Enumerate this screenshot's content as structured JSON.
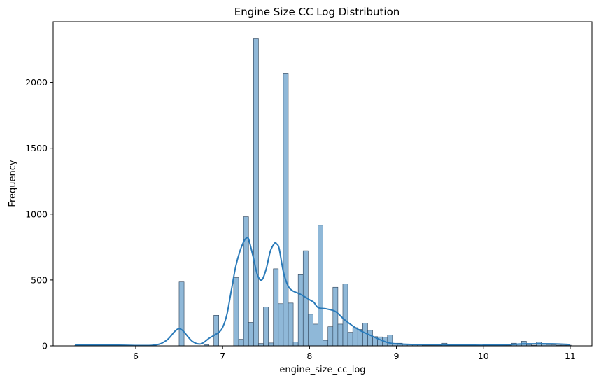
{
  "chart_data": {
    "type": "bar",
    "subtype": "histogram_with_kde",
    "title": "Engine Size CC Log Distribution",
    "xlabel": "engine_size_cc_log",
    "ylabel": "Frequency",
    "xlim": [
      5.05,
      11.25
    ],
    "ylim": [
      0,
      2460
    ],
    "xticks": [
      6,
      7,
      8,
      9,
      10,
      11
    ],
    "yticks": [
      0,
      500,
      1000,
      1500,
      2000,
      2500
    ],
    "grid": false,
    "legend": false,
    "colors": {
      "bar_fill": "#8fb8d8",
      "bar_edge": "#2b3f55",
      "kde_line": "#2a7ab9"
    },
    "histogram": {
      "bin_start": 5.3,
      "bin_width": 0.0571,
      "counts": [
        4,
        0,
        0,
        0,
        0,
        0,
        0,
        0,
        0,
        0,
        0,
        0,
        0,
        0,
        0,
        0,
        0,
        0,
        0,
        0,
        0,
        485,
        0,
        0,
        0,
        0,
        10,
        0,
        232,
        0,
        0,
        0,
        518,
        50,
        980,
        178,
        2335,
        18,
        294,
        22,
        585,
        320,
        2070,
        325,
        30,
        540,
        722,
        240,
        165,
        915,
        42,
        145,
        445,
        165,
        470,
        103,
        138,
        125,
        172,
        118,
        70,
        68,
        65,
        82,
        20,
        20,
        10,
        10,
        10,
        10,
        5,
        5,
        5,
        5,
        20,
        5,
        5,
        5,
        5,
        5,
        5,
        5,
        5,
        5,
        5,
        5,
        5,
        5,
        20,
        12,
        35,
        10,
        5,
        30,
        15,
        10,
        8,
        5,
        5,
        5
      ]
    },
    "kde": {
      "x": [
        5.3,
        5.8,
        6.2,
        6.35,
        6.45,
        6.5,
        6.55,
        6.65,
        6.75,
        6.85,
        6.95,
        7.0,
        7.05,
        7.1,
        7.15,
        7.2,
        7.25,
        7.28,
        7.3,
        7.35,
        7.4,
        7.45,
        7.5,
        7.55,
        7.6,
        7.62,
        7.65,
        7.7,
        7.75,
        7.8,
        7.9,
        8.0,
        8.05,
        8.1,
        8.2,
        8.3,
        8.4,
        8.5,
        8.6,
        8.7,
        8.8,
        8.9,
        9.0,
        9.2,
        9.4,
        9.6,
        10.0,
        10.3,
        10.5,
        10.8,
        11.0
      ],
      "y": [
        5,
        5,
        5,
        40,
        110,
        130,
        110,
        35,
        15,
        60,
        100,
        140,
        240,
        420,
        600,
        720,
        800,
        820,
        810,
        680,
        540,
        500,
        580,
        720,
        780,
        775,
        740,
        560,
        460,
        420,
        390,
        350,
        330,
        290,
        280,
        260,
        200,
        150,
        110,
        80,
        50,
        25,
        15,
        10,
        10,
        8,
        5,
        10,
        15,
        15,
        10
      ]
    }
  }
}
